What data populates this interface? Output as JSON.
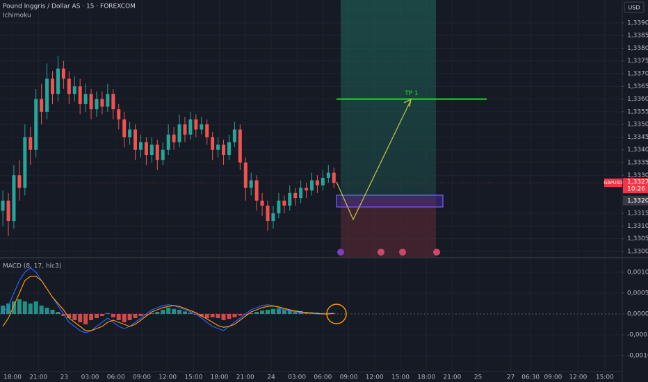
{
  "chart_data": [
    {
      "type": "candlestick",
      "title": "Pound Inggris / Dollar AS · 15 · FOREXCOM",
      "indicator": "Ichimoku",
      "currency_button": "USD",
      "up_color": "#26a69a",
      "down_color": "#ef5350",
      "grid": true,
      "x": [
        -1.12,
        -0.48,
        0.16,
        0.8,
        1.44,
        2.08,
        2.72,
        3.36,
        4,
        4.64,
        5.28,
        5.92,
        6.56,
        7.2,
        7.84,
        8.48,
        9.12,
        9.76,
        10.4,
        11.04,
        11.68,
        12.32,
        12.96,
        13.6,
        14.24,
        14.88,
        15.52,
        16.16,
        16.8,
        17.44,
        18.08,
        18.72,
        19.36,
        20,
        20.64,
        21.28,
        21.92,
        22.56,
        23.2,
        23.84,
        24.48,
        25.12,
        25.76,
        26.4,
        27.04,
        27.68,
        28.32,
        28.96,
        29.6,
        30.24,
        30.88,
        31.52,
        32.16,
        32.8,
        33.44,
        34.08,
        34.72,
        35.36,
        36,
        36.64,
        37.28
      ],
      "open": [
        1.3316,
        1.332,
        1.3312,
        1.333,
        1.3325,
        1.3345,
        1.334,
        1.336,
        1.3355,
        1.3368,
        1.3362,
        1.3372,
        1.3368,
        1.3362,
        1.3365,
        1.3358,
        1.3362,
        1.3356,
        1.336,
        1.3357,
        1.3362,
        1.3356,
        1.3352,
        1.3345,
        1.3348,
        1.334,
        1.3343,
        1.3338,
        1.3342,
        1.3336,
        1.334,
        1.3346,
        1.3343,
        1.335,
        1.3346,
        1.3352,
        1.3348,
        1.335,
        1.3345,
        1.334,
        1.3342,
        1.3338,
        1.3343,
        1.3348,
        1.3335,
        1.3325,
        1.3328,
        1.332,
        1.3318,
        1.3312,
        1.3315,
        1.332,
        1.3318,
        1.3323,
        1.3321,
        1.3325,
        1.3324,
        1.3328,
        1.3326,
        1.3329,
        1.3331
      ],
      "high": [
        1.3324,
        1.3323,
        1.3334,
        1.3336,
        1.335,
        1.3349,
        1.3364,
        1.3366,
        1.3374,
        1.3371,
        1.3377,
        1.3375,
        1.3371,
        1.3369,
        1.3368,
        1.3366,
        1.3364,
        1.3363,
        1.3363,
        1.3366,
        1.3364,
        1.3358,
        1.3355,
        1.3351,
        1.335,
        1.3346,
        1.3345,
        1.3345,
        1.3344,
        1.3343,
        1.335,
        1.3349,
        1.3354,
        1.3353,
        1.3355,
        1.3354,
        1.3353,
        1.3352,
        1.3347,
        1.3345,
        1.3344,
        1.3346,
        1.3351,
        1.335,
        1.3337,
        1.3331,
        1.333,
        1.3323,
        1.332,
        1.3318,
        1.3323,
        1.3322,
        1.3326,
        1.3325,
        1.3328,
        1.3327,
        1.3331,
        1.333,
        1.3332,
        1.3334,
        1.3333
      ],
      "low": [
        1.331,
        1.3306,
        1.3309,
        1.332,
        1.3322,
        1.3334,
        1.3337,
        1.335,
        1.3352,
        1.3358,
        1.3359,
        1.3364,
        1.3358,
        1.3359,
        1.3354,
        1.3355,
        1.3352,
        1.3353,
        1.3354,
        1.3355,
        1.3352,
        1.3348,
        1.3341,
        1.3342,
        1.3336,
        1.3337,
        1.3334,
        1.3335,
        1.3332,
        1.3334,
        1.3338,
        1.334,
        1.3341,
        1.3343,
        1.3344,
        1.3345,
        1.3346,
        1.3342,
        1.3336,
        1.3337,
        1.3334,
        1.3336,
        1.3341,
        1.3332,
        1.332,
        1.3322,
        1.3316,
        1.3314,
        1.3308,
        1.3309,
        1.3313,
        1.3315,
        1.3316,
        1.3318,
        1.3319,
        1.3321,
        1.3322,
        1.3323,
        1.3324,
        1.3327,
        1.3325
      ],
      "close": [
        1.332,
        1.3312,
        1.333,
        1.3325,
        1.3345,
        1.334,
        1.336,
        1.3355,
        1.3368,
        1.3362,
        1.3372,
        1.3368,
        1.3362,
        1.3365,
        1.3358,
        1.3362,
        1.3356,
        1.336,
        1.3357,
        1.3362,
        1.3356,
        1.3352,
        1.3345,
        1.3348,
        1.334,
        1.3343,
        1.3338,
        1.3342,
        1.3336,
        1.334,
        1.3346,
        1.3343,
        1.335,
        1.3346,
        1.3352,
        1.3348,
        1.335,
        1.3345,
        1.334,
        1.3342,
        1.3338,
        1.3343,
        1.3348,
        1.3335,
        1.3325,
        1.3328,
        1.332,
        1.3318,
        1.3312,
        1.3315,
        1.332,
        1.3318,
        1.3323,
        1.3321,
        1.3325,
        1.3324,
        1.3328,
        1.3326,
        1.3329,
        1.3331,
        1.3327
      ],
      "xlim": [
        -1.45,
        70.73
      ],
      "ylim": [
        1.32978,
        1.3399
      ],
      "yticks": [
        {
          "value": 1.339,
          "label": "1,33900"
        },
        {
          "value": 1.3385,
          "label": "1,33850"
        },
        {
          "value": 1.338,
          "label": "1,33800"
        },
        {
          "value": 1.3375,
          "label": "1,33750"
        },
        {
          "value": 1.337,
          "label": "1,33700"
        },
        {
          "value": 1.3365,
          "label": "1,33650"
        },
        {
          "value": 1.336,
          "label": "1,33600"
        },
        {
          "value": 1.3355,
          "label": "1,33550"
        },
        {
          "value": 1.335,
          "label": "1,33500"
        },
        {
          "value": 1.3345,
          "label": "1,33450"
        },
        {
          "value": 1.334,
          "label": "1,33400"
        },
        {
          "value": 1.3335,
          "label": "1,33350"
        },
        {
          "value": 1.333,
          "label": "1,33300"
        },
        {
          "value": 1.3315,
          "label": "1,33150"
        },
        {
          "value": 1.331,
          "label": "1,33100"
        },
        {
          "value": 1.3305,
          "label": "1,33050"
        },
        {
          "value": 1.33,
          "label": "1,33000"
        }
      ],
      "tp": {
        "label": "TP 1",
        "value": 1.336,
        "color": "#22dd22"
      },
      "symbol": "GBPUSD",
      "countdown": "10:26",
      "price_markers": [
        {
          "value": 1.3327,
          "label": "1,33270",
          "color": "#f23645"
        },
        {
          "value": 1.332,
          "label": "1,33200",
          "color": "#363a45"
        }
      ]
    },
    {
      "type": "macd",
      "title": "MACD (8, 17, hlc3)",
      "grid": true,
      "histogram": [
        0.0002,
        0.00025,
        0.0003,
        0.00035,
        0.0003,
        0.00025,
        0.0003,
        0.0002,
        0.00015,
        0.0001,
        5e-05,
        -5e-05,
        -0.0001,
        -0.00015,
        -0.0002,
        -0.00025,
        -0.00015,
        -0.0001,
        -5e-05,
        2e-05,
        -8e-05,
        -0.00015,
        -0.0002,
        -0.00015,
        -0.0001,
        -5e-05,
        -3e-05,
        2e-05,
        5e-05,
        0.0001,
        0.00015,
        0.00012,
        0.0001,
        6e-05,
        3e-05,
        -2e-05,
        -6e-05,
        -0.0001,
        -8e-05,
        -0.0001,
        -0.00015,
        -0.00012,
        -8e-05,
        -4e-05,
        -2e-05,
        2e-05,
        5e-05,
        8e-05,
        0.0001,
        0.00012,
        0.00013,
        0.00011,
        0.0001,
        8e-05,
        7e-05,
        5e-05,
        4e-05,
        3e-05,
        2e-05,
        2e-05,
        1e-05
      ],
      "histogram_colors": {
        "positive": "#26a69a",
        "negative": "#ef5350"
      },
      "lines": [
        {
          "color": "#2962ff",
          "values": [
            0,
            0.0002,
            0.0005,
            0.0008,
            0.001,
            0.0011,
            0.001,
            0.0008,
            0.0006,
            0.0004,
            0.0002,
            0,
            -0.0002,
            -0.0003,
            -0.0004,
            -0.00045,
            -0.0004,
            -0.0003,
            -0.0002,
            -0.0001,
            -0.0002,
            -0.0003,
            -0.00035,
            -0.0003,
            -0.0002,
            -0.0001,
            0,
            0.0001,
            0.00015,
            0.0002,
            0.00022,
            0.0002,
            0.00015,
            0.0001,
            5e-05,
            0,
            -0.0001,
            -0.0002,
            -0.0003,
            -0.00035,
            -0.0004,
            -0.0003,
            -0.0002,
            -0.0001,
            0,
            0.0001,
            0.00015,
            0.0002,
            0.00022,
            0.0002,
            0.00015,
            0.0001,
            8e-05,
            5e-05,
            3e-05,
            2e-05,
            1e-05,
            0,
            0,
            1e-05,
            2e-05
          ]
        },
        {
          "color": "#ff9800",
          "values": [
            -0.0003,
            -0.0001,
            0.0002,
            0.0005,
            0.0008,
            0.0009,
            0.0009,
            0.0008,
            0.0006,
            0.0004,
            0.00025,
            0.0001,
            -0.0001,
            -0.0002,
            -0.0003,
            -0.0004,
            -0.0004,
            -0.00035,
            -0.0003,
            -0.0002,
            -0.00015,
            -0.0002,
            -0.00025,
            -0.0003,
            -0.00025,
            -0.00015,
            -5e-05,
            5e-05,
            0.0001,
            0.00015,
            0.00018,
            0.0002,
            0.00018,
            0.00013,
            8e-05,
            3e-05,
            -5e-05,
            -0.00012,
            -0.0002,
            -0.00028,
            -0.00032,
            -0.0003,
            -0.00025,
            -0.00015,
            -5e-05,
            5e-05,
            0.0001,
            0.00015,
            0.00018,
            0.00019,
            0.00017,
            0.00013,
            0.0001,
            7e-05,
            5e-05,
            3e-05,
            2e-05,
            1e-05,
            0,
            0,
            1e-05
          ]
        }
      ],
      "ylim": [
        -0.00138,
        0.00133
      ],
      "yticks": [
        {
          "value": 0.001,
          "label": "0,00100"
        },
        {
          "value": 0.0005,
          "label": "0,00050"
        },
        {
          "value": 0,
          "label": "0,00000"
        },
        {
          "value": -0.0005,
          "label": "-0,00050"
        },
        {
          "value": -0.001,
          "label": "-0,00100"
        }
      ],
      "xticks": [
        {
          "value": 0,
          "label": "18:00"
        },
        {
          "value": 3,
          "label": "21:00"
        },
        {
          "value": 6,
          "label": "23"
        },
        {
          "value": 9,
          "label": "03:00"
        },
        {
          "value": 12,
          "label": "06:00"
        },
        {
          "value": 15,
          "label": "09:00"
        },
        {
          "value": 18,
          "label": "12:00"
        },
        {
          "value": 21,
          "label": "15:00"
        },
        {
          "value": 24,
          "label": "18:00"
        },
        {
          "value": 27,
          "label": "21:00"
        },
        {
          "value": 30,
          "label": "24"
        },
        {
          "value": 33,
          "label": "03:00"
        },
        {
          "value": 36,
          "label": "06:00"
        },
        {
          "value": 39,
          "label": "09:00"
        },
        {
          "value": 42,
          "label": "12:00"
        },
        {
          "value": 45,
          "label": "15:00"
        },
        {
          "value": 48,
          "label": "18:00"
        },
        {
          "value": 51,
          "label": "21:00"
        },
        {
          "value": 54,
          "label": "25"
        },
        {
          "value": 57.8,
          "label": "27"
        },
        {
          "value": 60.1,
          "label": "06:30"
        },
        {
          "value": 62.7,
          "label": "09:00"
        },
        {
          "value": 65.6,
          "label": "12:00"
        },
        {
          "value": 68.7,
          "label": "15:00"
        }
      ]
    }
  ]
}
